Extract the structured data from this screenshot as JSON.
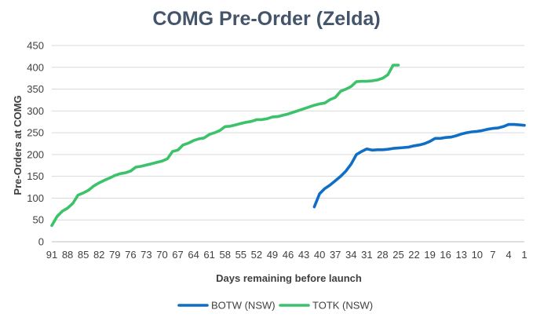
{
  "chart_data": {
    "type": "line",
    "title": "COMG Pre-Order (Zelda)",
    "xlabel": "Days remaining before launch",
    "ylabel": "Pre-Orders at COMG",
    "xlim": [
      91,
      1
    ],
    "x_reversed": true,
    "x_ticks": [
      91,
      88,
      85,
      82,
      79,
      76,
      73,
      70,
      67,
      64,
      61,
      58,
      55,
      52,
      49,
      46,
      43,
      40,
      37,
      34,
      31,
      28,
      25,
      22,
      19,
      16,
      13,
      10,
      7,
      4,
      1
    ],
    "ylim": [
      0,
      450
    ],
    "y_ticks": [
      0,
      50,
      100,
      150,
      200,
      250,
      300,
      350,
      400,
      450
    ],
    "grid": "horizontal",
    "legend_position": "bottom",
    "series": [
      {
        "name": "BOTW (NSW)",
        "color": "#0f6fc6",
        "x": [
          41,
          40,
          39,
          38,
          37,
          36,
          35,
          34,
          33,
          32,
          31,
          30,
          29,
          28,
          27,
          26,
          25,
          24,
          23,
          22,
          21,
          20,
          19,
          18,
          17,
          16,
          15,
          14,
          13,
          12,
          11,
          10,
          9,
          8,
          7,
          6,
          5,
          4,
          3,
          2,
          1
        ],
        "y": [
          80,
          110,
          122,
          130,
          140,
          150,
          162,
          178,
          200,
          207,
          213,
          210,
          211,
          211,
          212,
          214,
          215,
          216,
          217,
          220,
          222,
          225,
          230,
          237,
          237,
          239,
          240,
          243,
          247,
          250,
          252,
          253,
          255,
          258,
          260,
          261,
          264,
          269,
          269,
          268,
          267
        ]
      },
      {
        "name": "TOTK (NSW)",
        "color": "#3cc26b",
        "x": [
          91,
          90,
          89,
          88,
          87,
          86,
          85,
          84,
          83,
          82,
          81,
          80,
          79,
          78,
          77,
          76,
          75,
          74,
          73,
          72,
          71,
          70,
          69,
          68,
          67,
          66,
          65,
          64,
          63,
          62,
          61,
          60,
          59,
          58,
          57,
          56,
          55,
          54,
          53,
          52,
          51,
          50,
          49,
          48,
          47,
          46,
          45,
          44,
          43,
          42,
          41,
          40,
          39,
          38,
          37,
          36,
          35,
          34,
          33,
          32,
          31,
          30,
          29,
          28,
          27,
          26,
          25
        ],
        "y": [
          37,
          58,
          70,
          77,
          88,
          107,
          112,
          118,
          128,
          135,
          141,
          146,
          152,
          156,
          158,
          162,
          171,
          173,
          176,
          179,
          182,
          185,
          190,
          207,
          210,
          222,
          226,
          232,
          236,
          238,
          246,
          250,
          255,
          264,
          265,
          268,
          271,
          274,
          276,
          280,
          280,
          282,
          286,
          287,
          290,
          293,
          297,
          301,
          305,
          309,
          313,
          316,
          318,
          326,
          331,
          345,
          350,
          356,
          367,
          368,
          368,
          369,
          371,
          375,
          383,
          405,
          405
        ]
      }
    ]
  }
}
